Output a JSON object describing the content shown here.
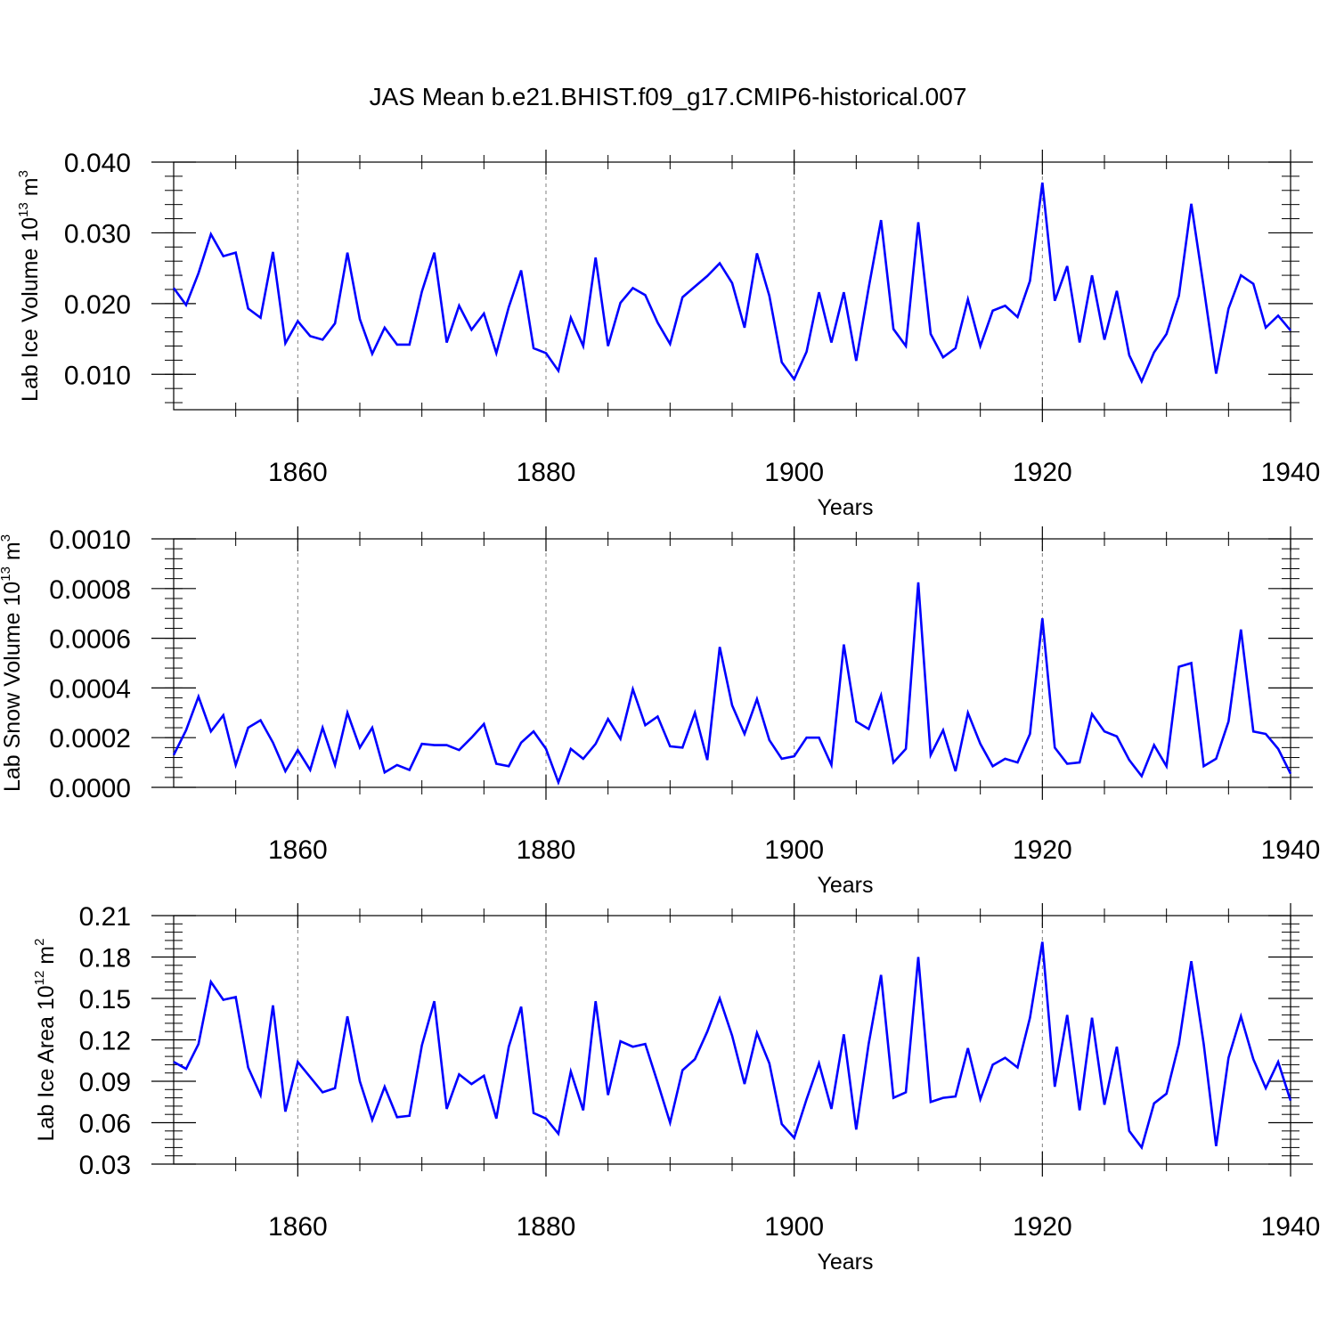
{
  "title": "JAS Mean b.e21.BHIST.f09_g17.CMIP6-historical.007",
  "colors": {
    "series": "#0000ff",
    "axis": "#000000",
    "grid": "#7f7f7f"
  },
  "chart_data": [
    {
      "type": "line",
      "xlabel": "Years",
      "ylabel": {
        "text": "Lab Ice Volume 10",
        "exp": "13",
        "unit": " m",
        "unit_exp": "3"
      },
      "xlim": [
        1850,
        1940
      ],
      "ylim": [
        0.005,
        0.04
      ],
      "yticks": [
        0.01,
        0.02,
        0.03,
        0.04
      ],
      "ytick_labels": [
        "0.010",
        "0.020",
        "0.030",
        "0.040"
      ],
      "xticks": [
        1860,
        1880,
        1900,
        1920,
        1940
      ],
      "xtick_labels": [
        "1860",
        "1880",
        "1900",
        "1920",
        "1940"
      ],
      "grid": "vertical-dashed",
      "x_start": 1850,
      "values": [
        0.0222,
        0.0198,
        0.0243,
        0.0298,
        0.0267,
        0.0272,
        0.0193,
        0.018,
        0.0273,
        0.0144,
        0.0175,
        0.0154,
        0.0149,
        0.0172,
        0.0272,
        0.0178,
        0.0129,
        0.0166,
        0.0142,
        0.0142,
        0.0217,
        0.0272,
        0.0145,
        0.0197,
        0.0163,
        0.0186,
        0.013,
        0.0195,
        0.0247,
        0.0137,
        0.013,
        0.0105,
        0.018,
        0.014,
        0.0265,
        0.014,
        0.0201,
        0.0222,
        0.0212,
        0.0173,
        0.0143,
        0.0209,
        0.0224,
        0.0239,
        0.0257,
        0.0229,
        0.0166,
        0.0271,
        0.0211,
        0.0117,
        0.0093,
        0.0132,
        0.0216,
        0.0145,
        0.0216,
        0.0119,
        0.0222,
        0.0318,
        0.0164,
        0.014,
        0.0315,
        0.0157,
        0.0124,
        0.0137,
        0.0206,
        0.014,
        0.019,
        0.0197,
        0.0181,
        0.0232,
        0.0371,
        0.0204,
        0.0253,
        0.0145,
        0.024,
        0.0149,
        0.0218,
        0.0127,
        0.009,
        0.0131,
        0.0157,
        0.0211,
        0.0341,
        0.0223,
        0.0101,
        0.0193,
        0.024,
        0.0228,
        0.0166,
        0.0183,
        0.0162
      ]
    },
    {
      "type": "line",
      "xlabel": "Years",
      "ylabel": {
        "text": "Lab Snow Volume 10",
        "exp": "13",
        "unit": " m",
        "unit_exp": "3"
      },
      "xlim": [
        1850,
        1940
      ],
      "ylim": [
        0.0,
        0.001
      ],
      "yticks": [
        0.0,
        0.0002,
        0.0004,
        0.0006,
        0.0008,
        0.001
      ],
      "ytick_labels": [
        "0.0000",
        "0.0002",
        "0.0004",
        "0.0006",
        "0.0008",
        "0.0010"
      ],
      "xticks": [
        1860,
        1880,
        1900,
        1920,
        1940
      ],
      "xtick_labels": [
        "1860",
        "1880",
        "1900",
        "1920",
        "1940"
      ],
      "grid": "vertical-dashed",
      "x_start": 1850,
      "values": [
        0.00013,
        0.00023,
        0.000365,
        0.000225,
        0.00029,
        9e-05,
        0.00024,
        0.00027,
        0.00018,
        6.5e-05,
        0.00015,
        7e-05,
        0.00024,
        9e-05,
        0.0003,
        0.00016,
        0.00024,
        6e-05,
        9e-05,
        7e-05,
        0.000175,
        0.00017,
        0.00017,
        0.00015,
        0.0002,
        0.000255,
        9.5e-05,
        8.5e-05,
        0.00018,
        0.000225,
        0.000155,
        2e-05,
        0.000155,
        0.000115,
        0.000175,
        0.000275,
        0.000195,
        0.000395,
        0.00025,
        0.000285,
        0.000165,
        0.00016,
        0.0003,
        0.00011,
        0.000565,
        0.00033,
        0.000215,
        0.000355,
        0.00019,
        0.000115,
        0.000125,
        0.0002,
        0.0002,
        9e-05,
        0.000575,
        0.000265,
        0.000235,
        0.00037,
        0.0001,
        0.000155,
        0.000825,
        0.00013,
        0.00023,
        6.5e-05,
        0.0003,
        0.000175,
        8.5e-05,
        0.000115,
        0.0001,
        0.000215,
        0.00068,
        0.00016,
        9.5e-05,
        0.0001,
        0.000295,
        0.000225,
        0.000205,
        0.00011,
        4.5e-05,
        0.00017,
        8.5e-05,
        0.000485,
        0.0005,
        8.5e-05,
        0.000115,
        0.000265,
        0.000635,
        0.000225,
        0.000215,
        0.000155,
        5.5e-05
      ]
    },
    {
      "type": "line",
      "xlabel": "Years",
      "ylabel": {
        "text": "Lab Ice Area 10",
        "exp": "12",
        "unit": " m",
        "unit_exp": "2"
      },
      "xlim": [
        1850,
        1940
      ],
      "ylim": [
        0.03,
        0.21
      ],
      "yticks": [
        0.03,
        0.06,
        0.09,
        0.12,
        0.15,
        0.18,
        0.21
      ],
      "ytick_labels": [
        "0.03",
        "0.06",
        "0.09",
        "0.12",
        "0.15",
        "0.18",
        "0.21"
      ],
      "xticks": [
        1860,
        1880,
        1900,
        1920,
        1940
      ],
      "xtick_labels": [
        "1860",
        "1880",
        "1900",
        "1920",
        "1940"
      ],
      "grid": "vertical-dashed",
      "x_start": 1850,
      "values": [
        0.104,
        0.099,
        0.117,
        0.162,
        0.149,
        0.151,
        0.1,
        0.08,
        0.145,
        0.068,
        0.104,
        0.093,
        0.082,
        0.085,
        0.137,
        0.09,
        0.062,
        0.086,
        0.064,
        0.065,
        0.116,
        0.148,
        0.07,
        0.095,
        0.088,
        0.094,
        0.063,
        0.115,
        0.144,
        0.067,
        0.063,
        0.052,
        0.097,
        0.069,
        0.148,
        0.08,
        0.119,
        0.115,
        0.117,
        0.089,
        0.06,
        0.098,
        0.106,
        0.126,
        0.15,
        0.123,
        0.088,
        0.125,
        0.103,
        0.059,
        0.049,
        0.077,
        0.103,
        0.07,
        0.124,
        0.055,
        0.117,
        0.167,
        0.078,
        0.082,
        0.18,
        0.075,
        0.078,
        0.079,
        0.114,
        0.077,
        0.102,
        0.107,
        0.1,
        0.136,
        0.191,
        0.086,
        0.138,
        0.069,
        0.136,
        0.073,
        0.115,
        0.054,
        0.042,
        0.074,
        0.081,
        0.117,
        0.177,
        0.117,
        0.043,
        0.107,
        0.137,
        0.106,
        0.085,
        0.104,
        0.076
      ]
    }
  ]
}
